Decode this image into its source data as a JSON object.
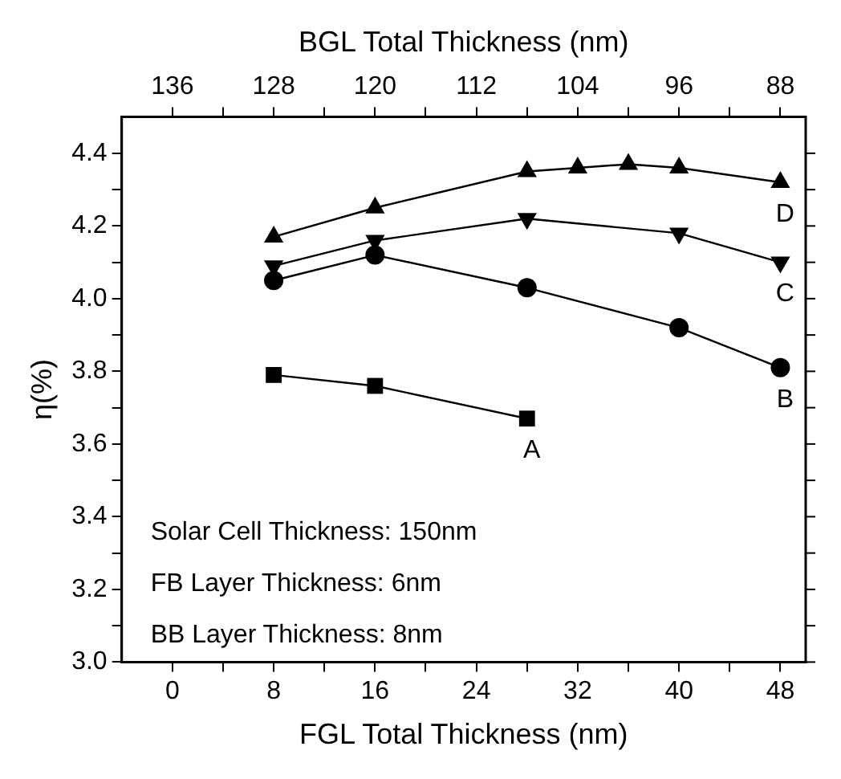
{
  "chart_data": {
    "type": "line",
    "xlabel": "FGL Total Thickness (nm)",
    "ylabel": "η(%)",
    "x2label": "BGL Total Thickness (nm)",
    "xlim": [
      -4,
      50
    ],
    "xticks": [
      0,
      {
        "value": 4,
        "label": null
      },
      8,
      {
        "value": 12,
        "label": null
      },
      16,
      {
        "value": 20,
        "label": null
      },
      24,
      {
        "value": 28,
        "label": null
      },
      32,
      {
        "value": 36,
        "label": null
      },
      40,
      {
        "value": 44,
        "label": null
      },
      48
    ],
    "x2lim": [
      140,
      86
    ],
    "x2ticks": [
      136,
      {
        "value": 132,
        "label": null
      },
      128,
      {
        "value": 124,
        "label": null
      },
      120,
      {
        "value": 116,
        "label": null
      },
      112,
      {
        "value": 108,
        "label": null
      },
      104,
      {
        "value": 100,
        "label": null
      },
      96,
      {
        "value": 92,
        "label": null
      },
      88
    ],
    "ylim": [
      3.0,
      4.5
    ],
    "yticks": [
      "3.0",
      {
        "value": 3.1,
        "label": null
      },
      3.2,
      {
        "value": 3.3,
        "label": null
      },
      3.4,
      {
        "value": 3.5,
        "label": null
      },
      3.6,
      {
        "value": 3.7,
        "label": null
      },
      3.8,
      {
        "value": 3.9,
        "label": null
      },
      {
        "value": 4.0,
        "label": "4.0"
      },
      {
        "value": 4.1,
        "label": null
      },
      4.2,
      {
        "value": 4.3,
        "label": null
      },
      4.4
    ],
    "grid": false,
    "legend": "right",
    "line_style": "solid",
    "series": [
      {
        "name": "A",
        "color": "#000000",
        "marker": "square",
        "x": [
          8,
          16,
          28
        ],
        "values": [
          3.79,
          3.76,
          3.67
        ]
      },
      {
        "name": "B",
        "color": "#000000",
        "marker": "circle",
        "x": [
          8,
          16,
          28,
          40,
          48
        ],
        "values": [
          4.05,
          4.12,
          4.03,
          3.92,
          3.81
        ]
      },
      {
        "name": "C",
        "color": "#000000",
        "marker": "triangle-down",
        "x": [
          8,
          16,
          28,
          40,
          48
        ],
        "values": [
          4.09,
          4.16,
          4.22,
          4.18,
          4.1
        ]
      },
      {
        "name": "D",
        "color": "#000000",
        "marker": "triangle",
        "x": [
          8,
          16,
          28,
          32,
          36,
          40,
          48
        ],
        "values": [
          4.17,
          4.25,
          4.35,
          4.36,
          4.37,
          4.36,
          4.32
        ]
      }
    ],
    "annotations": [
      "Solar Cell Thickness: 150nm",
      "FB Layer Thickness: 6nm",
      "BB Layer Thickness: 8nm"
    ]
  }
}
